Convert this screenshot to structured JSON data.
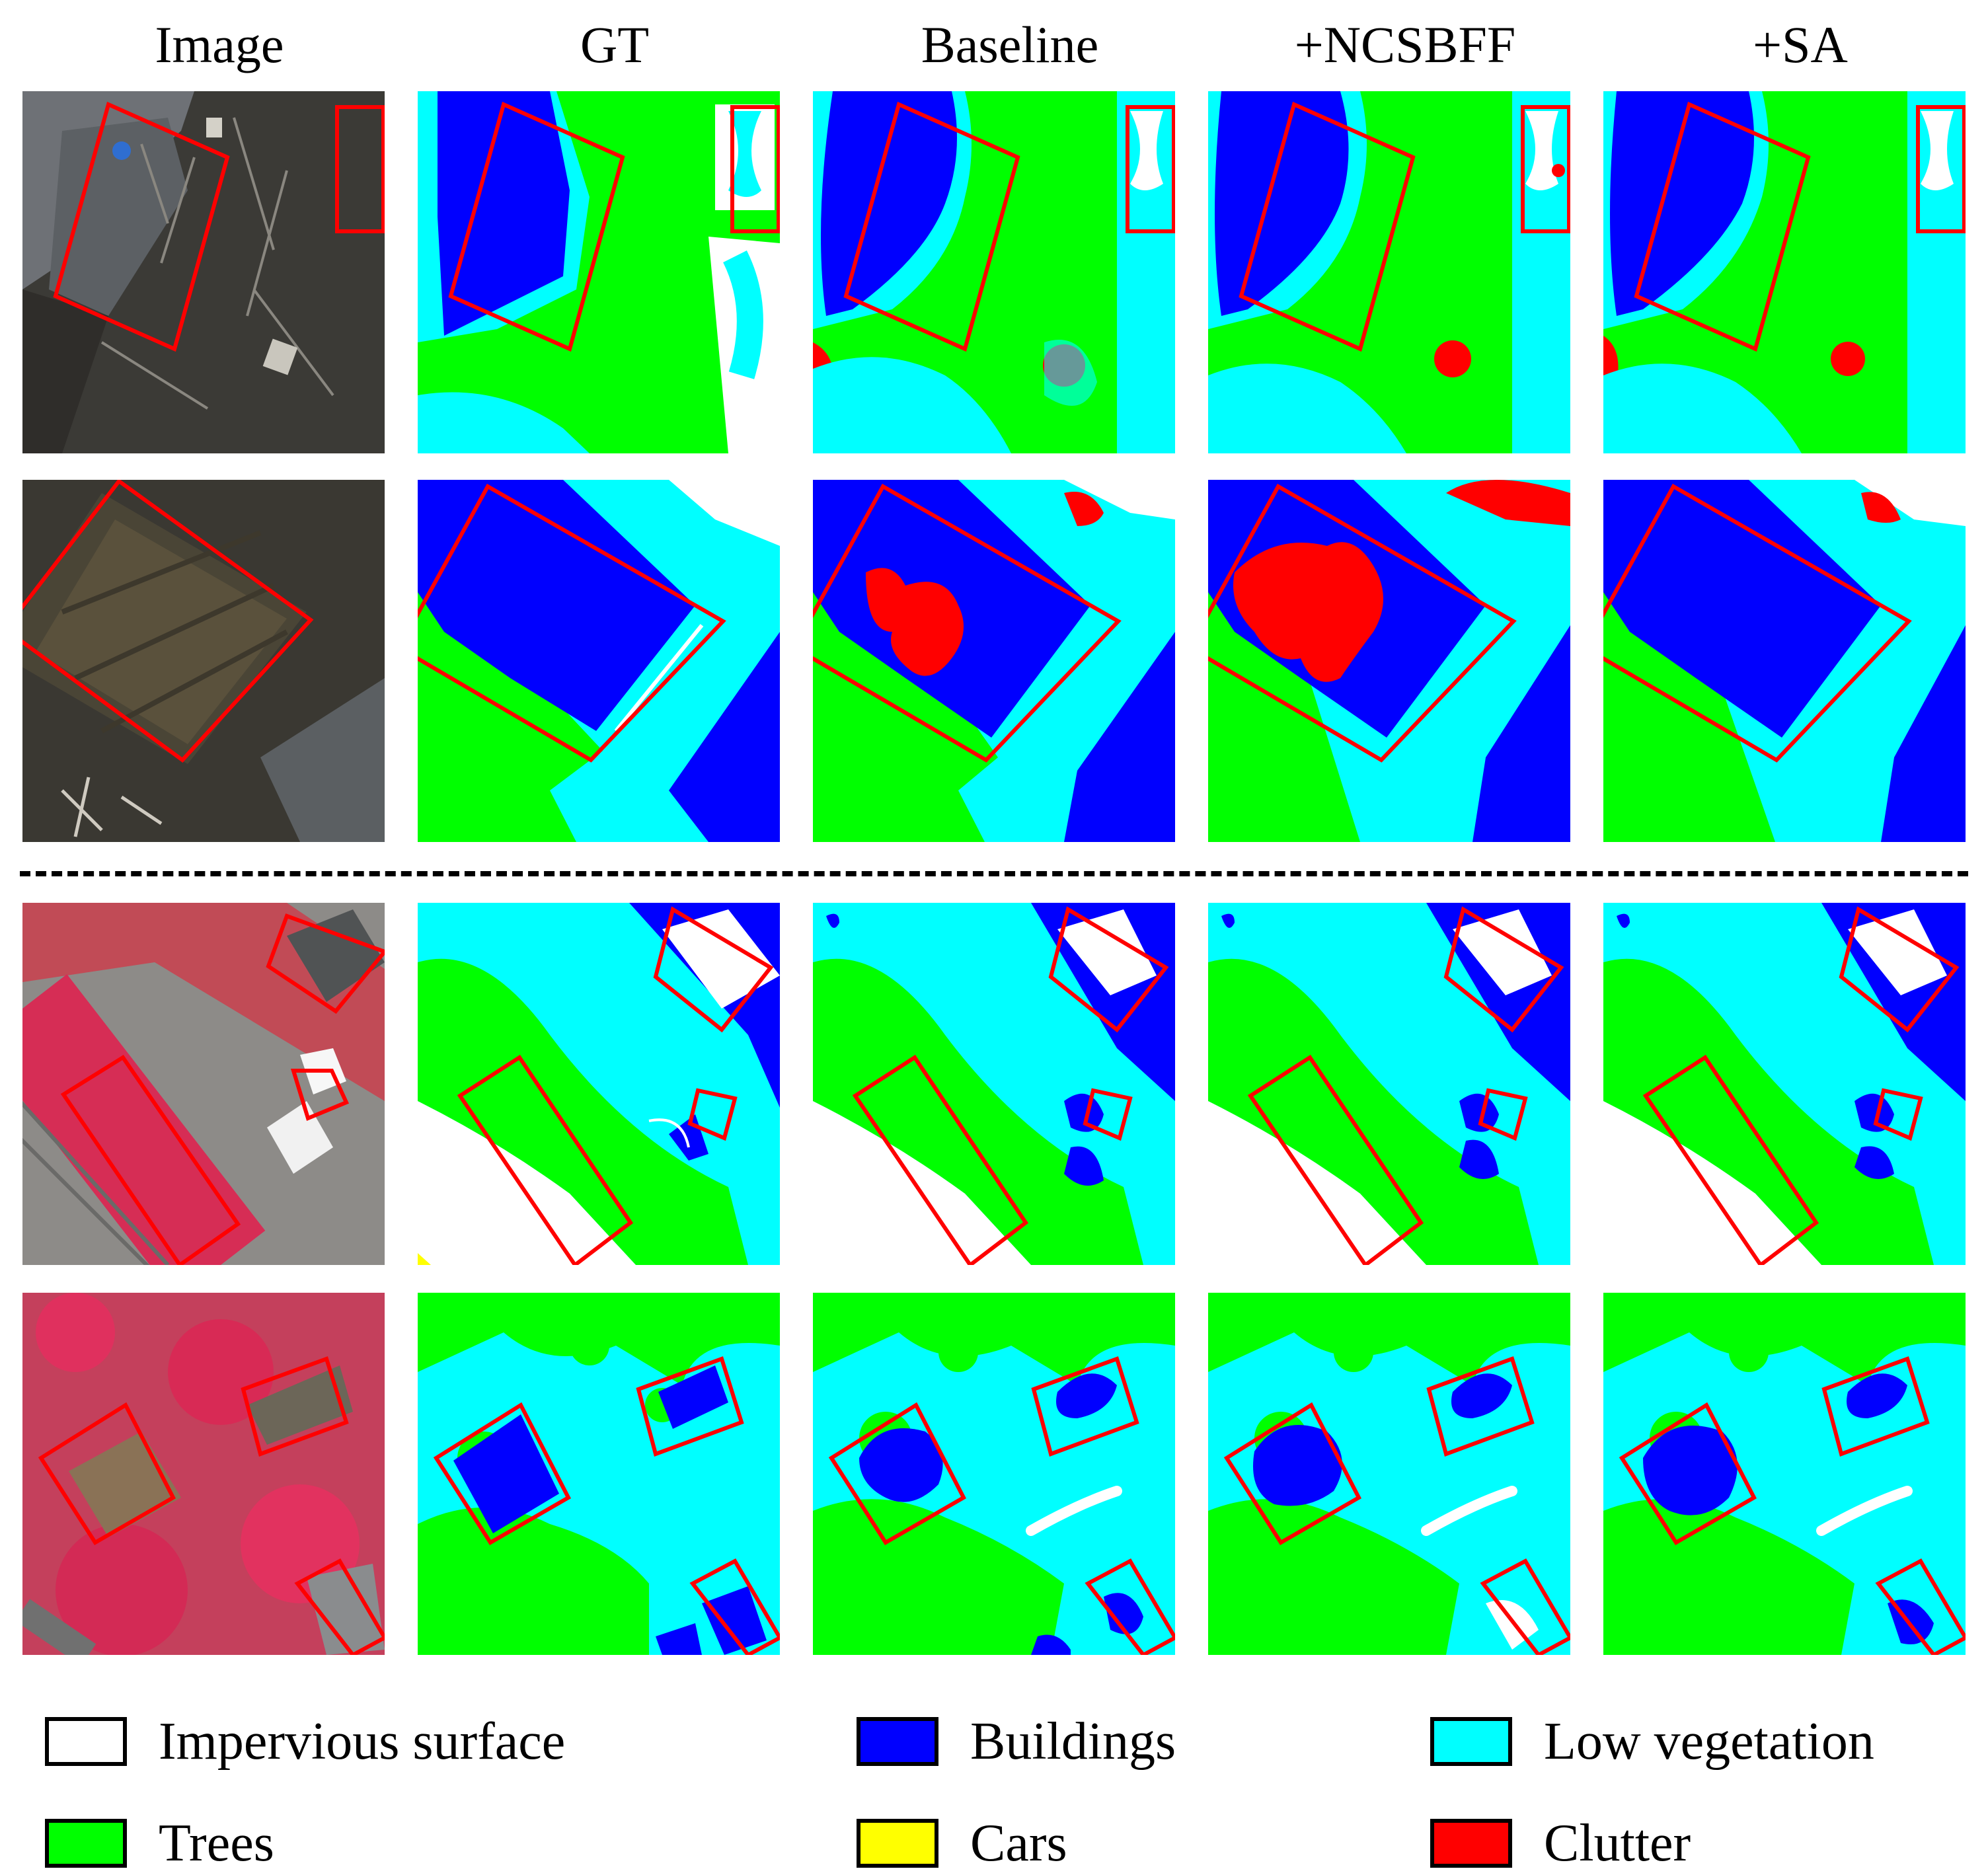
{
  "columns": [
    {
      "label": "Image"
    },
    {
      "label": "GT"
    },
    {
      "label": "Baseline"
    },
    {
      "label": "+NCSBFF"
    },
    {
      "label": "+SA"
    }
  ],
  "colors": {
    "impervious": "#ffffff",
    "buildings": "#0000ff",
    "low_vegetation": "#00ffff",
    "trees": "#00ff00",
    "cars": "#ffff00",
    "clutter": "#ff0000",
    "highlight": "#ff0000"
  },
  "legend": [
    {
      "label": "Impervious surface",
      "color": "#ffffff"
    },
    {
      "label": "Buildings",
      "color": "#0000ff"
    },
    {
      "label": "Low vegetation",
      "color": "#00ffff"
    },
    {
      "label": "Trees",
      "color": "#00ff00"
    },
    {
      "label": "Cars",
      "color": "#ffff00"
    },
    {
      "label": "Clutter",
      "color": "#ff0000"
    }
  ]
}
